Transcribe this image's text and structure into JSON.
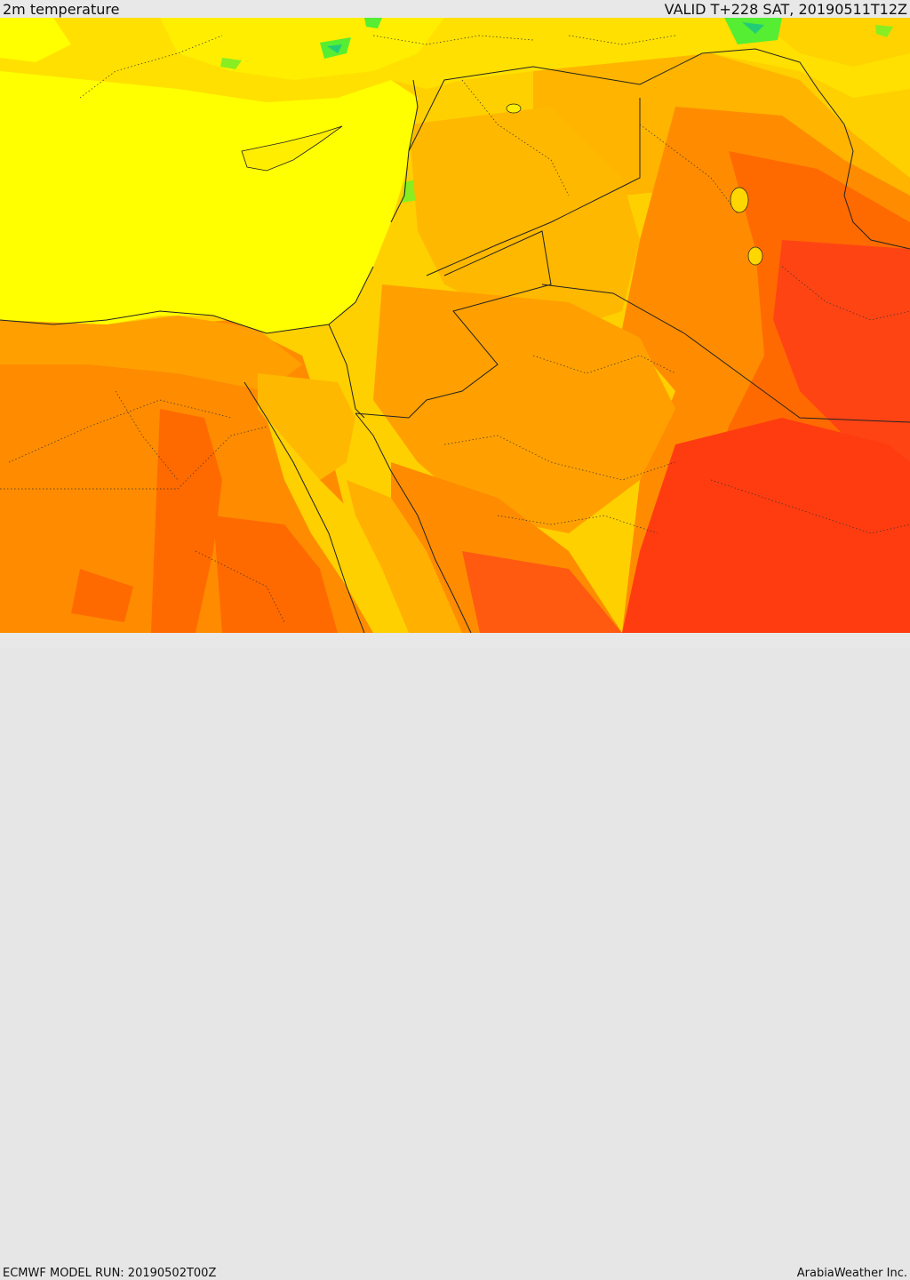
{
  "header": {
    "title": "2m temperature",
    "valid": "VALID T+228 SAT, 20190511T12Z"
  },
  "footer": {
    "model_run": "ECMWF MODEL RUN: 20190502T00Z",
    "credit": "ArabiaWeather Inc."
  },
  "colors": {
    "sea": "#ffff00",
    "green": "#55ee33",
    "teal": "#22cc77",
    "yellow_orange": "#ffd700",
    "light_orange": "#ffb000",
    "orange": "#ff8c00",
    "dark_orange": "#ff6a00",
    "red_orange": "#ff3c10"
  }
}
